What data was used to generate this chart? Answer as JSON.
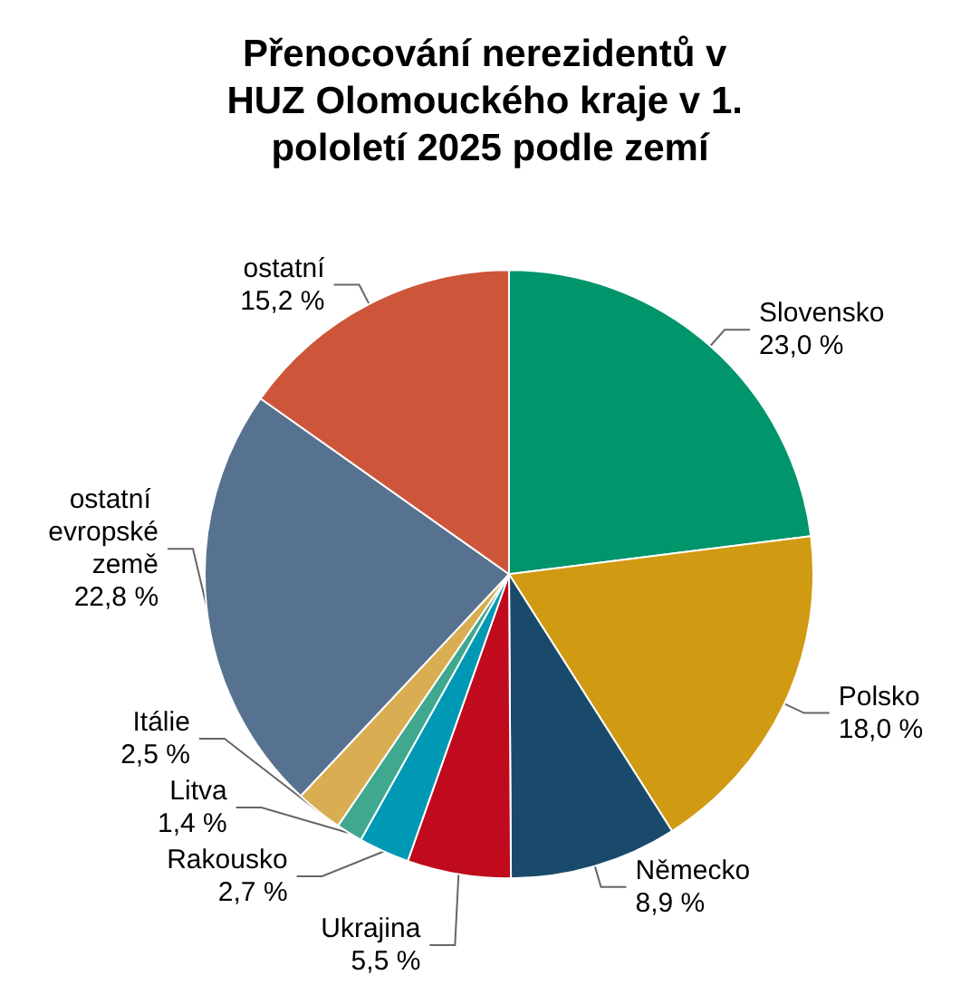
{
  "chart_data": {
    "type": "pie",
    "title": "Přenocování nerezidentů v HUZ Olomouckého kraje v 1. pololetí 2025 podle zemí",
    "categories": [
      "Slovensko",
      "Polsko",
      "Německo",
      "Ukrajina",
      "Rakousko",
      "Litva",
      "Itálie",
      "ostatní evropské země",
      "ostatní"
    ],
    "values": [
      23.0,
      18.0,
      8.9,
      5.5,
      2.7,
      1.4,
      2.5,
      22.8,
      15.2
    ],
    "value_labels": [
      "23,0 %",
      "18,0 %",
      "8,9 %",
      "5,5 %",
      "2,7 %",
      "1,4 %",
      "2,5 %",
      "22,8 %",
      "15,2 %"
    ],
    "colors": [
      "#00956b",
      "#d09a12",
      "#1a4a6b",
      "#c00a1e",
      "#0099b5",
      "#3fa88e",
      "#d9ae52",
      "#577290",
      "#cd563a"
    ],
    "legend": false
  }
}
